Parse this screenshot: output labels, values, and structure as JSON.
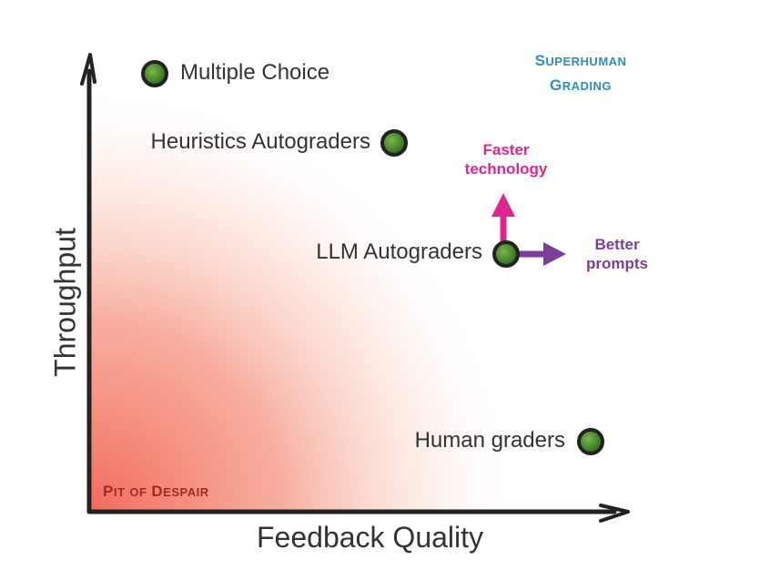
{
  "axes": {
    "x_label": "Feedback Quality",
    "y_label": "Throughput"
  },
  "points": [
    {
      "id": "multiple-choice",
      "label": "Multiple Choice"
    },
    {
      "id": "heuristics",
      "label": "Heuristics Autograders"
    },
    {
      "id": "llm",
      "label": "LLM Autograders"
    },
    {
      "id": "human",
      "label": "Human graders"
    }
  ],
  "regions": {
    "superhuman": {
      "line1_big": "S",
      "line1_small": "UPERHUMAN",
      "line2_big": "G",
      "line2_small": "RADING"
    },
    "pit": {
      "w1_big": "P",
      "w1_small": "IT",
      "w2_small": "OF",
      "w3_big": "D",
      "w3_small": "ESPAIR"
    }
  },
  "arrows": {
    "faster": {
      "line1": "Faster",
      "line2": "technology"
    },
    "better": {
      "line1": "Better",
      "line2": "prompts"
    }
  },
  "colors": {
    "point_fill": "#4f8f2f",
    "point_outline": "#222222",
    "superhuman": "#2b8fbe",
    "pit": "#9e2b25",
    "faster_arrow": "#e0258d",
    "better_arrow": "#7c3f98",
    "gradient": "#f26b5b"
  }
}
